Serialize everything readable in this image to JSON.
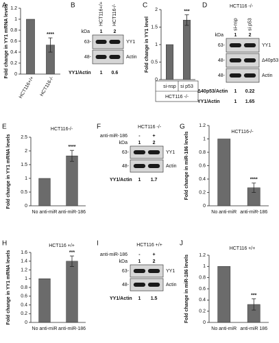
{
  "chart_data": [
    {
      "panel": "A",
      "type": "bar",
      "ylabel": "Fold change in YY1 mRNA levels",
      "categories": [
        "HCT116+/+",
        "HCT116-/-"
      ],
      "values": [
        1,
        0.53
      ],
      "errors": [
        null,
        0.13
      ],
      "annotation": "****",
      "color": "#6b6b6b",
      "ylim": [
        0,
        1.2
      ],
      "yticks": [
        0,
        0.2,
        0.4,
        0.6,
        0.8,
        1,
        1.2
      ]
    },
    {
      "panel": "C",
      "type": "bar",
      "ylabel": "Fold change in YY1 level",
      "categories": [
        "si-nsp",
        "si p53"
      ],
      "values": [
        1,
        1.7
      ],
      "errors": [
        null,
        0.15
      ],
      "annotation": "***",
      "footer": "HCT116 -/-",
      "color": "#6b6b6b",
      "ylim": [
        0,
        2
      ],
      "yticks": [
        0,
        0.5,
        1,
        1.5,
        2
      ]
    },
    {
      "panel": "E",
      "type": "bar",
      "title": "HCT116-/-",
      "ylabel": "Fold change in YY1 mRNA levels",
      "categories": [
        "No anti-miR",
        "anti-miR-186"
      ],
      "values": [
        1,
        1.82
      ],
      "errors": [
        null,
        0.2
      ],
      "annotation": "****",
      "color": "#6b6b6b",
      "ylim": [
        0,
        2.5
      ],
      "yticks": [
        0,
        0.5,
        1,
        1.5,
        2,
        2.5
      ]
    },
    {
      "panel": "G",
      "type": "bar",
      "title": "HCT116-/-",
      "ylabel": "Fold change in miR-186 levels",
      "categories": [
        "No anti-miR",
        "anti-miR-186"
      ],
      "values": [
        1,
        0.27
      ],
      "errors": [
        null,
        0.07
      ],
      "annotation": "****",
      "color": "#6b6b6b",
      "ylim": [
        0,
        1.2
      ],
      "yticks": [
        0,
        0.2,
        0.4,
        0.6,
        0.8,
        1,
        1.2
      ]
    },
    {
      "panel": "H",
      "type": "bar",
      "title": "HCT116 +/+",
      "ylabel": "Fold change in YY1 mRNA levels",
      "categories": [
        "No anti-miR",
        "anti-miR-186"
      ],
      "values": [
        1,
        1.4
      ],
      "errors": [
        null,
        0.12
      ],
      "annotation": "***",
      "color": "#6b6b6b",
      "ylim": [
        0,
        1.6
      ],
      "yticks": [
        0,
        0.2,
        0.4,
        0.6,
        0.8,
        1,
        1.2,
        1.4,
        1.6
      ]
    },
    {
      "panel": "J",
      "type": "bar",
      "title": "HCT116 +/+",
      "ylabel": "Fold change in miR-186 levels",
      "categories": [
        "No anti-miR",
        "anti-miR 186"
      ],
      "values": [
        1,
        0.32
      ],
      "errors": [
        null,
        0.1
      ],
      "annotation": "***",
      "color": "#6b6b6b",
      "ylim": [
        0,
        1.2
      ],
      "yticks": [
        0,
        0.2,
        0.4,
        0.6,
        0.8,
        1,
        1.2
      ]
    }
  ],
  "blots": [
    {
      "panel": "B",
      "lanes": [
        "HCT116+/+",
        "HCT116-/-"
      ],
      "kda": "kDa",
      "lane_numbers": [
        1,
        2
      ],
      "rows": [
        {
          "marker": "63-",
          "label": "YY1"
        },
        {
          "marker": "48-",
          "label": "Actin"
        }
      ],
      "ratios": [
        {
          "label": "YY1/Actin",
          "values": [
            1,
            0.6
          ]
        }
      ]
    },
    {
      "panel": "D",
      "header": "HCT116 -/-",
      "lanes": [
        "si-nsp",
        "si p53"
      ],
      "kda": "kDa",
      "lane_numbers": [
        1,
        2
      ],
      "rows": [
        {
          "marker": "63-",
          "label": "YY1"
        },
        {
          "marker": "48-",
          "label": "Δ40p53"
        },
        {
          "marker": "48-",
          "label": "Actin"
        }
      ],
      "ratios": [
        {
          "label": "Δ40p53/Actin",
          "values": [
            1,
            0.22
          ]
        },
        {
          "label": "YY1/Actin",
          "values": [
            1,
            1.65
          ]
        }
      ]
    },
    {
      "panel": "F",
      "header": "HCT116 -/-",
      "condition": "anti-miR-186",
      "lanes": [
        "-",
        "+"
      ],
      "kda": "kDa",
      "lane_numbers": [
        1,
        2
      ],
      "rows": [
        {
          "marker": "63-",
          "label": "YY1"
        },
        {
          "marker": "48-",
          "label": "Actin"
        }
      ],
      "ratios": [
        {
          "label": "YY1/Actin",
          "values": [
            1,
            1.7
          ]
        }
      ]
    },
    {
      "panel": "I",
      "header": "HCT116 +/+",
      "condition": "anti-miR-186",
      "lanes": [
        "-",
        "+"
      ],
      "kda": "kDa",
      "lane_numbers": [
        1,
        2
      ],
      "rows": [
        {
          "marker": "63-",
          "label": "YY1"
        },
        {
          "marker": "48-",
          "label": "Actin"
        }
      ],
      "ratios": [
        {
          "label": "YY1/Actin",
          "values": [
            1,
            1.5
          ]
        }
      ]
    }
  ]
}
